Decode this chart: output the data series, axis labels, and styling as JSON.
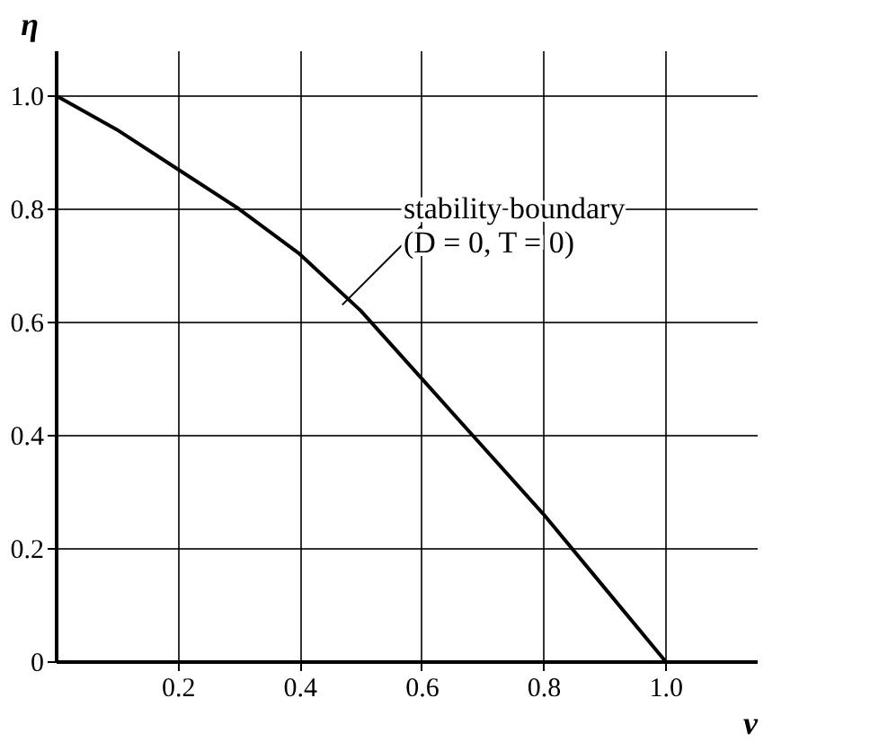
{
  "chart_data": {
    "type": "line",
    "xlabel": "ν",
    "ylabel": "η",
    "x": [
      0,
      0.1,
      0.2,
      0.3,
      0.4,
      0.5,
      0.6,
      0.7,
      0.8,
      0.9,
      1.0
    ],
    "series": [
      {
        "color": "#000000",
        "values": [
          1.0,
          0.94,
          0.87,
          0.8,
          0.72,
          0.62,
          0.5,
          0.38,
          0.26,
          0.13,
          0
        ]
      }
    ],
    "xlim": [
      0,
      1.15
    ],
    "ylim": [
      0,
      1.08
    ],
    "xticks": [
      0.2,
      0.4,
      0.6,
      0.8,
      {
        "value": 1,
        "label": "1.0"
      }
    ],
    "yticks": [
      0,
      0.2,
      0.4,
      0.6,
      0.8,
      {
        "value": 1,
        "label": "1.0"
      }
    ],
    "grid": true,
    "marker": "none",
    "line_style": "solid",
    "annotations": [
      {
        "text": "stability boundary\n(D = 0, T = 0)",
        "x": 0.47,
        "y": 0.63
      }
    ]
  }
}
